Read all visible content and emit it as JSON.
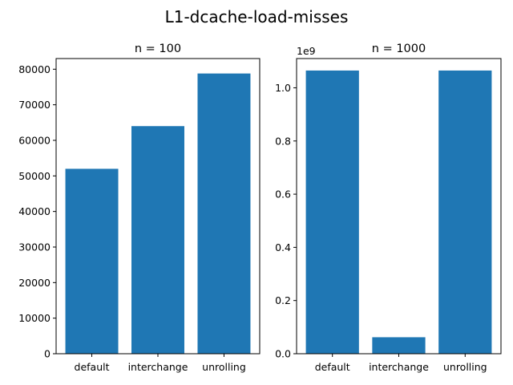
{
  "figure": {
    "title": "L1-dcache-load-misses"
  },
  "chart_data": [
    {
      "type": "bar",
      "title": "n = 100",
      "categories": [
        "default",
        "interchange",
        "unrolling"
      ],
      "values": [
        52000,
        64000,
        78800
      ],
      "xlabel": "",
      "ylabel": "",
      "ylim": [
        0,
        83000
      ],
      "yticks": [
        0,
        10000,
        20000,
        30000,
        40000,
        50000,
        60000,
        70000,
        80000
      ],
      "ytick_labels": [
        "0",
        "10000",
        "20000",
        "30000",
        "40000",
        "50000",
        "60000",
        "70000",
        "80000"
      ],
      "offset_text": "",
      "grid": false,
      "bar_color": "#1f77b4"
    },
    {
      "type": "bar",
      "title": "n = 1000",
      "categories": [
        "default",
        "interchange",
        "unrolling"
      ],
      "values": [
        1065000000,
        62000000,
        1065000000
      ],
      "xlabel": "",
      "ylabel": "",
      "ylim": [
        0,
        1110000000
      ],
      "yticks": [
        0,
        200000000,
        400000000,
        600000000,
        800000000,
        1000000000
      ],
      "ytick_labels": [
        "0.0",
        "0.2",
        "0.4",
        "0.6",
        "0.8",
        "1.0"
      ],
      "offset_text": "1e9",
      "grid": false,
      "bar_color": "#1f77b4"
    }
  ]
}
